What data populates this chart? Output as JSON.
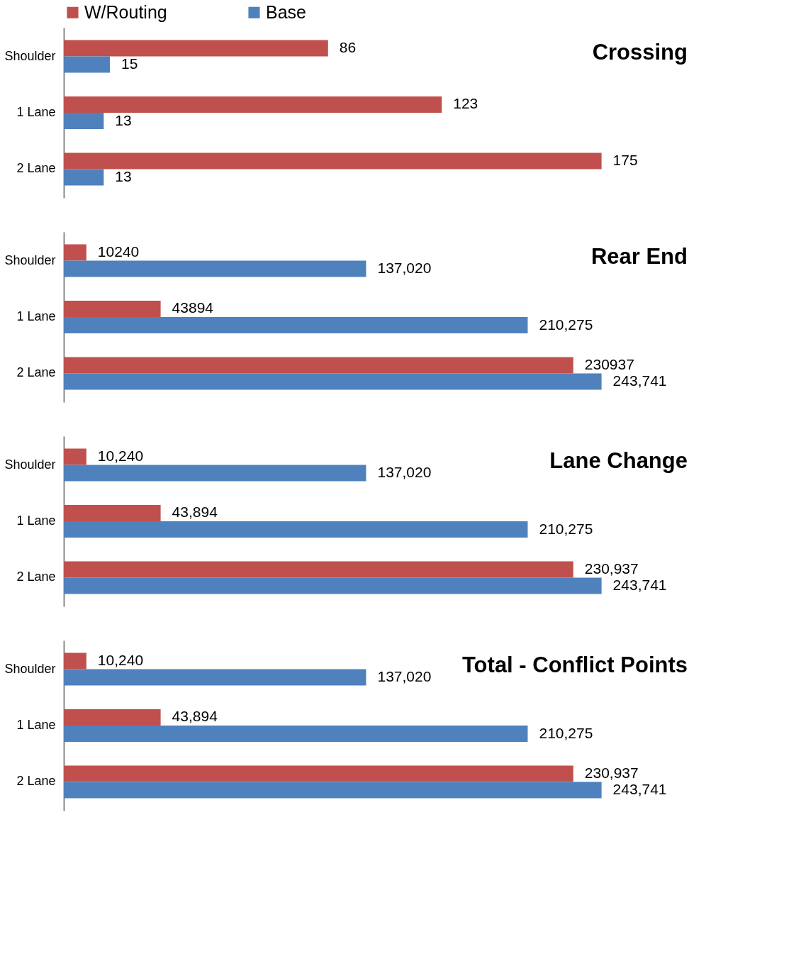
{
  "chart_data": [
    {
      "type": "bar",
      "orientation": "horizontal",
      "title": "Crossing",
      "legend": "top",
      "categories": [
        "Shoulder",
        "1 Lane",
        "2 Lane"
      ],
      "series": [
        {
          "name": "W/Routing",
          "color": "#c0504d",
          "values": [
            86,
            123,
            175
          ],
          "value_labels": [
            "86",
            "123",
            "175"
          ]
        },
        {
          "name": "Base",
          "color": "#4f81bd",
          "values": [
            15,
            13,
            13
          ],
          "value_labels": [
            "15",
            "13",
            "13"
          ]
        }
      ]
    },
    {
      "type": "bar",
      "orientation": "horizontal",
      "title": "Rear End",
      "categories": [
        "Shoulder",
        "1 Lane",
        "2 Lane"
      ],
      "series": [
        {
          "color": "#c0504d",
          "values": [
            10240,
            43894,
            230937
          ],
          "value_labels": [
            "10240",
            "43894",
            "230937"
          ]
        },
        {
          "color": "#4f81bd",
          "values": [
            137020,
            210275,
            243741
          ],
          "value_labels": [
            "137,020",
            "210,275",
            "243,741"
          ]
        }
      ]
    },
    {
      "type": "bar",
      "orientation": "horizontal",
      "title": "Lane Change",
      "categories": [
        "Shoulder",
        "1 Lane",
        "2 Lane"
      ],
      "series": [
        {
          "color": "#c0504d",
          "values": [
            10240,
            43894,
            230937
          ],
          "value_labels": [
            "10,240",
            "43,894",
            "230,937"
          ]
        },
        {
          "color": "#4f81bd",
          "values": [
            137020,
            210275,
            243741
          ],
          "value_labels": [
            "137,020",
            "210,275",
            "243,741"
          ]
        }
      ]
    },
    {
      "type": "bar",
      "orientation": "horizontal",
      "title": "Total - Conflict Points",
      "categories": [
        "Shoulder",
        "1 Lane",
        "2 Lane"
      ],
      "series": [
        {
          "color": "#c0504d",
          "values": [
            10240,
            43894,
            230937
          ],
          "value_labels": [
            "10,240",
            "43,894",
            "230,937"
          ]
        },
        {
          "color": "#4f81bd",
          "values": [
            137020,
            210275,
            243741
          ],
          "value_labels": [
            "137,020",
            "210,275",
            "243,741"
          ]
        }
      ]
    }
  ]
}
